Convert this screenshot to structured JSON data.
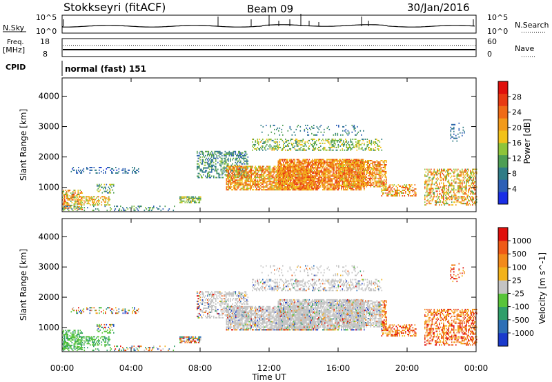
{
  "header": {
    "station": "Stokkseyri (fitACF)",
    "beam": "Beam 09",
    "date": "30/Jan/2016"
  },
  "nsky_panel": {
    "label": "N.Sky",
    "left_ticks": [
      "10^5",
      "10^0"
    ],
    "right_ticks": [
      "10^5",
      "10^0"
    ],
    "right_label": "N.Search"
  },
  "freq_panel": {
    "label_line1": "Freq.",
    "label_line2": "[MHz]",
    "left_ticks": [
      "18",
      "8"
    ],
    "right_ticks": [
      "60",
      "0"
    ],
    "right_label": "Nave"
  },
  "cpid": {
    "label": "CPID",
    "value": "normal (fast) 151"
  },
  "chart_data": [
    {
      "type": "heatmap",
      "quantity": "Power",
      "ylabel": "Slant Range [km]",
      "yticks": [
        1000,
        2000,
        3000,
        4000
      ],
      "ylim": [
        200,
        4600
      ],
      "xlim": [
        0,
        24
      ],
      "colorbar": {
        "label": "Power [dB]",
        "ticks": [
          "4",
          "8",
          "12",
          "16",
          "20",
          "24",
          "28"
        ],
        "colors": [
          "#1a2ee6",
          "#2d5fb6",
          "#2f7c86",
          "#4e9e54",
          "#8ec43a",
          "#f2c21a",
          "#f29a1a",
          "#ef6a16",
          "#e83a12",
          "#e0100c"
        ]
      }
    },
    {
      "type": "heatmap",
      "quantity": "Velocity",
      "ylabel": "Slant Range [km]",
      "yticks": [
        1000,
        2000,
        3000,
        4000
      ],
      "ylim": [
        200,
        4600
      ],
      "xlim": [
        0,
        24
      ],
      "colorbar": {
        "label": "Velocity  [m s^-1]",
        "ticks": [
          "1000",
          "500",
          "100",
          "25",
          "-25",
          "-100",
          "-500",
          "-1000"
        ],
        "colors": [
          "#1a3acc",
          "#2d6fb6",
          "#2f9e6a",
          "#58c43a",
          "#c4c4c4",
          "#f2b21a",
          "#f28a1a",
          "#ef5a16",
          "#e0100c"
        ]
      }
    }
  ],
  "xaxis": {
    "label": "Time UT",
    "ticks": [
      "00:00",
      "04:00",
      "08:00",
      "12:00",
      "16:00",
      "20:00",
      "00:00"
    ]
  }
}
